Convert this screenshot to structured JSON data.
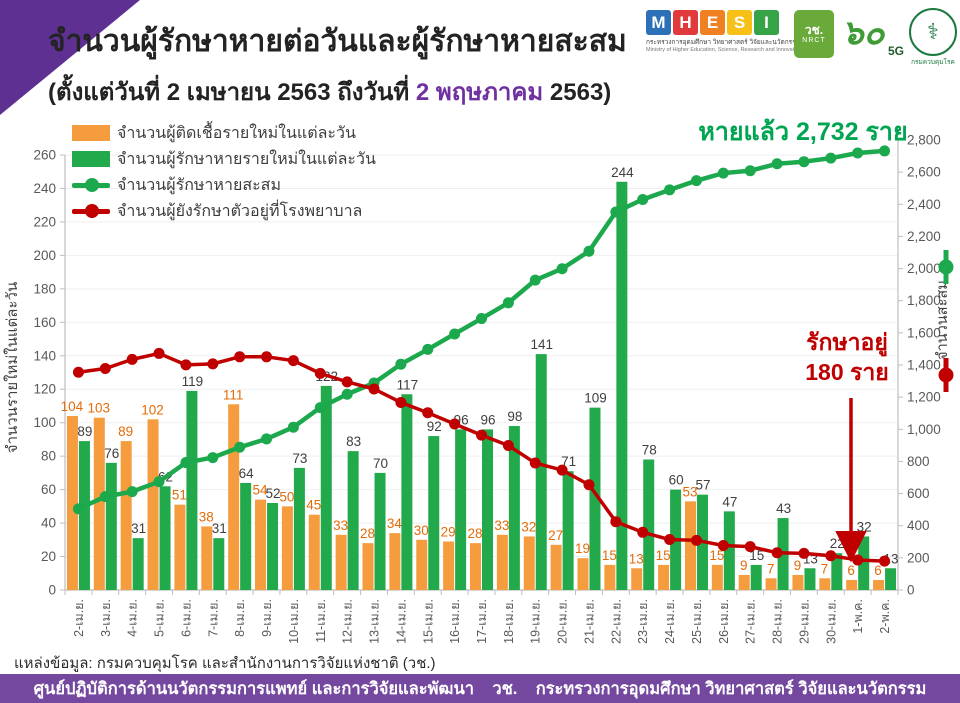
{
  "header": {
    "title": "จำนวนผู้รักษาหายต่อวันและผู้รักษาหายสะสม",
    "subtitle_prefix": "(ตั้งแต่วันที่ 2 เมษายน 2563 ถึงวันที่ ",
    "subtitle_highlight": "2 พฤษภาคม",
    "subtitle_suffix": " 2563)",
    "highlight_color": "#7030A0"
  },
  "logos": {
    "mhesi_letters": [
      "M",
      "H",
      "E",
      "S",
      "I"
    ],
    "mhesi_colors": [
      "#2C70B7",
      "#E03A3C",
      "#F08122",
      "#F6C016",
      "#36A346"
    ],
    "mhesi_thai": "กระทรวงการอุดมศึกษา วิทยาศาสตร์ วิจัยและนวัตกรรม",
    "mhesi_eng": "Ministry of Higher Education, Science, Research and Innovation",
    "nrct_line1": "วช.",
    "nrct_line2": "NRCT",
    "sixty_num": "๖๐",
    "sixty_5g": "5G",
    "ddc_symbol": "⚕",
    "ddc_name": "กรมควบคุมโรค"
  },
  "annotations": {
    "recovered_total": "หายแล้ว 2,732 ราย",
    "recovered_color": "#00A551",
    "in_care_line1": "รักษาอยู่",
    "in_care_line2": "180 ราย",
    "in_care_color": "#C00000"
  },
  "chart_data": {
    "type": "combo bar+line",
    "categories": [
      "2-เม.ย.",
      "3-เม.ย.",
      "4-เม.ย.",
      "5-เม.ย.",
      "6-เม.ย.",
      "7-เม.ย.",
      "8-เม.ย.",
      "9-เม.ย.",
      "10-เม.ย.",
      "11-เม.ย.",
      "12-เม.ย.",
      "13-เม.ย.",
      "14-เม.ย.",
      "15-เม.ย.",
      "16-เม.ย.",
      "17-เม.ย.",
      "18-เม.ย.",
      "19-เม.ย.",
      "20-เม.ย.",
      "21-เม.ย.",
      "22-เม.ย.",
      "23-เม.ย.",
      "24-เม.ย.",
      "25-เม.ย.",
      "26-เม.ย.",
      "27-เม.ย.",
      "28-เม.ย.",
      "29-เม.ย.",
      "30-เม.ย.",
      "1-พ.ค.",
      "2-พ.ค."
    ],
    "series": [
      {
        "name": "จำนวนผู้ติดเชื้อรายใหม่ในแต่ละวัน",
        "type": "bar",
        "axis": "left",
        "color": "#F59C3F",
        "label_color": "#E36C0A",
        "values": [
          104,
          103,
          89,
          102,
          51,
          38,
          111,
          54,
          50,
          45,
          33,
          28,
          34,
          30,
          29,
          28,
          33,
          32,
          27,
          19,
          15,
          13,
          15,
          53,
          15,
          9,
          7,
          9,
          7,
          6,
          6
        ]
      },
      {
        "name": "จำนวนผู้รักษาหายรายใหม่ในแต่ละวัน",
        "type": "bar",
        "axis": "left",
        "color": "#21A94B",
        "label_color": "#3F3F3F",
        "values": [
          89,
          76,
          31,
          62,
          119,
          31,
          64,
          52,
          73,
          122,
          83,
          70,
          117,
          92,
          96,
          96,
          98,
          141,
          71,
          109,
          244,
          78,
          60,
          57,
          47,
          15,
          43,
          13,
          22,
          32,
          13
        ]
      },
      {
        "name": "จำนวนผู้รักษาหายสะสม",
        "type": "line",
        "axis": "right",
        "color": "#1CA84D",
        "values": [
          505,
          581,
          612,
          674,
          793,
          824,
          888,
          940,
          1013,
          1135,
          1218,
          1288,
          1405,
          1497,
          1593,
          1689,
          1787,
          1928,
          1999,
          2108,
          2352,
          2430,
          2490,
          2547,
          2594,
          2609,
          2652,
          2665,
          2687,
          2719,
          2732
        ]
      },
      {
        "name": "จำนวนผู้ยังรักษาตัวอยู่ที่โรงพยาบาล",
        "type": "line",
        "axis": "right",
        "color": "#C00000",
        "values": [
          1355,
          1378,
          1435,
          1472,
          1401,
          1407,
          1451,
          1451,
          1427,
          1348,
          1295,
          1251,
          1167,
          1103,
          1033,
          964,
          899,
          790,
          746,
          655,
          425,
          359,
          314,
          309,
          277,
          270,
          232,
          228,
          213,
          187,
          180
        ]
      }
    ],
    "left_axis": {
      "label": "จำนวนรายใหม่ในแต่ละวัน",
      "min": 0,
      "max": 260,
      "step": 20,
      "ticks": [
        0,
        20,
        40,
        60,
        80,
        100,
        120,
        140,
        160,
        180,
        200,
        220,
        240,
        260
      ]
    },
    "right_axis": {
      "label": "จำนวนสะสม",
      "min": 0,
      "max": 2800,
      "step": 200,
      "ticks": [
        "0",
        "200",
        "400",
        "600",
        "800",
        "1,000",
        "1,200",
        "1,400",
        "1,600",
        "1,800",
        "2,000",
        "2,200",
        "2,400",
        "2,600",
        "2,800"
      ]
    },
    "grid": "faint horizontal gridlines",
    "legend_position": "top-left inside plot area"
  },
  "colors": {
    "purple_wedge": "#5E3092",
    "purple_footer": "#75489F",
    "axis_line": "#BFBFBF",
    "tick_text": "#595959"
  },
  "source": "แหล่งข้อมูล: กรมควบคุมโรค และสำนักงานการวิจัยแห่งชาติ (วช.)",
  "footer": "ศูนย์ปฏิบัติการด้านนวัตกรรมการแพทย์ และการวิจัยและพัฒนา    วช.    กระทรวงการอุดมศึกษา วิทยาศาสตร์ วิจัยและนวัตกรรม"
}
